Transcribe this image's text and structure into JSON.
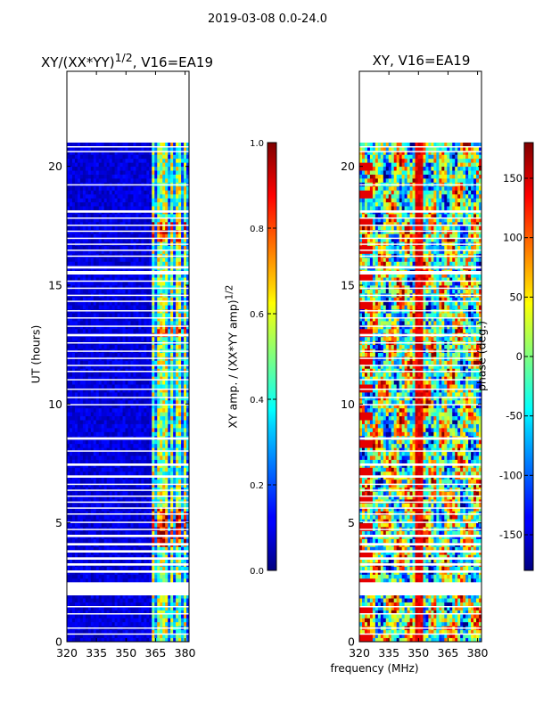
{
  "suptitle": "2019-03-08 0.0-24.0",
  "figure_xlabel": "frequency (MHz)",
  "chart_data": [
    {
      "type": "heatmap",
      "title_html": "XY/(XX*YY)<sup>1/2</sup>, V16=EA19",
      "title_text": "XY/(XX*YY)1/2, V16=EA19",
      "xlabel": "",
      "ylabel": "UT (hours)",
      "xlim": [
        320,
        382
      ],
      "ylim": [
        0,
        24
      ],
      "xticks": [
        320,
        335,
        350,
        365,
        380
      ],
      "yticks": [
        0,
        5,
        10,
        15,
        20
      ],
      "data_extent_hours": [
        0,
        21
      ],
      "bright_channels_mhz": [
        364,
        367,
        370,
        373,
        377,
        380
      ],
      "colorbar": {
        "label_html": "XY amp. / (XX*YY amp)<sup>1/2</sup>",
        "label_text": "XY amp. / (XX*YY amp)1/2",
        "range": [
          0.0,
          1.0
        ],
        "ticks": [
          "0.0",
          "0.2",
          "0.4",
          "0.6",
          "0.8",
          "1.0"
        ],
        "tick_values": [
          0.0,
          0.2,
          0.4,
          0.6,
          0.8,
          1.0
        ]
      }
    },
    {
      "type": "heatmap",
      "title_html": "XY, V16=EA19",
      "title_text": "XY, V16=EA19",
      "xlabel": "",
      "ylabel": "",
      "xlim": [
        320,
        382
      ],
      "ylim": [
        0,
        24
      ],
      "xticks": [
        320,
        335,
        350,
        365,
        380
      ],
      "yticks": [
        0,
        5,
        10,
        15,
        20
      ],
      "data_extent_hours": [
        0,
        21
      ],
      "colorbar": {
        "label_text": "phase (deg.)",
        "range": [
          -180,
          180
        ],
        "ticks": [
          "-150",
          "-100",
          "-50",
          "0",
          "50",
          "100",
          "150"
        ],
        "tick_values": [
          -150,
          -100,
          -50,
          0,
          50,
          100,
          150
        ]
      }
    }
  ],
  "gap_bands_hours": [
    [
      0.3,
      0.35
    ],
    [
      0.55,
      0.6
    ],
    [
      1.15,
      1.2
    ],
    [
      1.45,
      1.5
    ],
    [
      1.95,
      2.5
    ],
    [
      2.9,
      3.0
    ],
    [
      3.2,
      3.3
    ],
    [
      3.45,
      3.55
    ],
    [
      3.75,
      3.85
    ],
    [
      4.05,
      4.15
    ],
    [
      4.4,
      4.5
    ],
    [
      4.7,
      4.75
    ],
    [
      5.0,
      5.05
    ],
    [
      5.35,
      5.4
    ],
    [
      5.6,
      5.65
    ],
    [
      5.85,
      5.9
    ],
    [
      6.1,
      6.15
    ],
    [
      6.35,
      6.4
    ],
    [
      6.6,
      6.65
    ],
    [
      6.9,
      7.0
    ],
    [
      7.4,
      7.5
    ],
    [
      8.0,
      8.05
    ],
    [
      8.5,
      8.6
    ],
    [
      9.95,
      10.0
    ],
    [
      10.25,
      10.3
    ],
    [
      10.6,
      10.65
    ],
    [
      11.0,
      11.05
    ],
    [
      11.35,
      11.4
    ],
    [
      11.6,
      11.65
    ],
    [
      11.9,
      11.95
    ],
    [
      12.2,
      12.25
    ],
    [
      12.55,
      12.6
    ],
    [
      12.85,
      12.95
    ],
    [
      13.25,
      13.3
    ],
    [
      13.6,
      13.65
    ],
    [
      13.9,
      13.95
    ],
    [
      14.3,
      14.35
    ],
    [
      14.55,
      14.6
    ],
    [
      14.85,
      14.9
    ],
    [
      15.15,
      15.2
    ],
    [
      15.45,
      15.6
    ],
    [
      15.7,
      15.8
    ],
    [
      16.2,
      16.25
    ],
    [
      16.45,
      16.5
    ],
    [
      16.7,
      16.75
    ],
    [
      16.95,
      17.0
    ],
    [
      17.25,
      17.3
    ],
    [
      17.5,
      17.55
    ],
    [
      17.8,
      17.85
    ],
    [
      18.05,
      18.15
    ],
    [
      19.2,
      19.25
    ],
    [
      20.6,
      20.65
    ],
    [
      20.8,
      20.85
    ]
  ]
}
